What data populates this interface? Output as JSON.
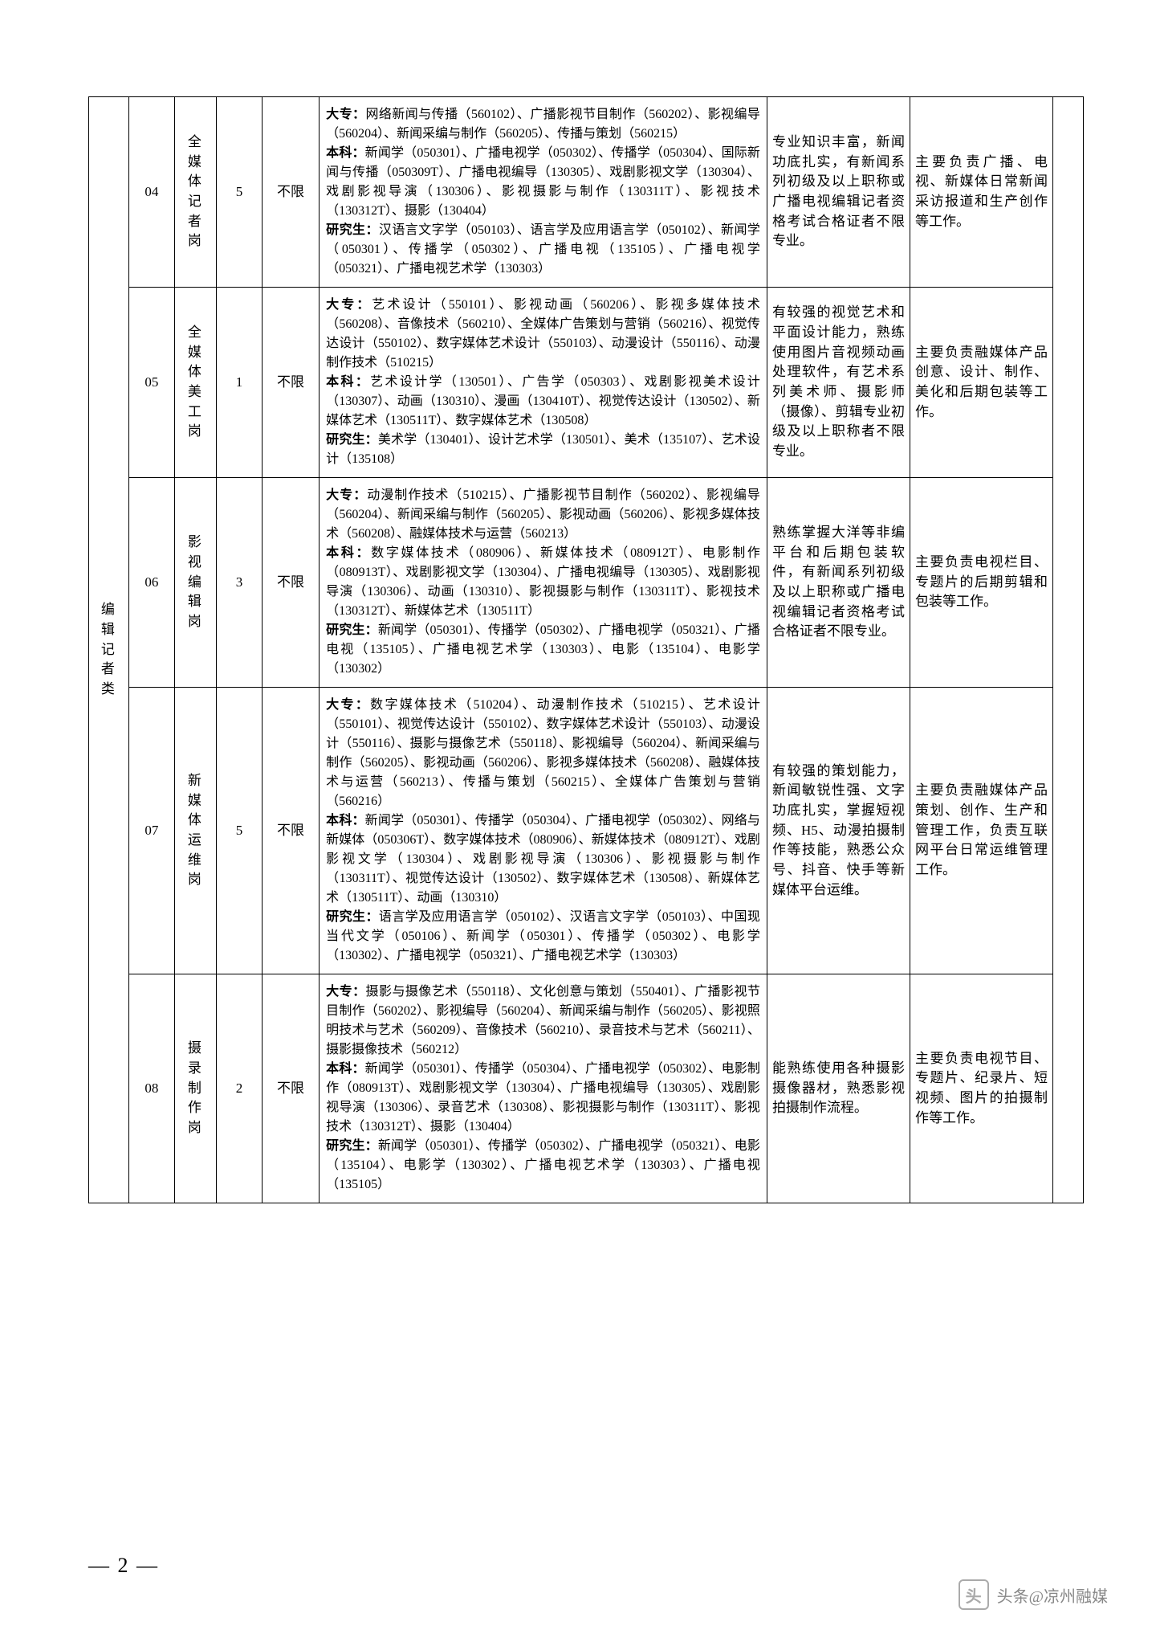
{
  "category": "编辑记者类",
  "pageNumber": "— 2 —",
  "watermark": {
    "prefix": "头条",
    "name": "@凉州融媒"
  },
  "rows": [
    {
      "num": "04",
      "post": "全媒体记者岗",
      "count": "5",
      "limit": "不限",
      "major": "<b>大专：</b>网络新闻与传播（560102）、广播影视节目制作（560202）、影视编导（560204）、新闻采编与制作（560205）、传播与策划（560215）<br><b>本科：</b>新闻学（050301）、广播电视学（050302）、传播学（050304）、国际新闻与传播（050309T）、广播电视编导（130305）、戏剧影视文学（130304）、戏剧影视导演（130306）、影视摄影与制作（130311T）、影视技术（130312T）、摄影（130404）<br><b>研究生：</b>汉语言文字学（050103）、语言学及应用语言学（050102）、新闻学（050301）、传播学（050302）、广播电视（135105）、广播电视学（050321）、广播电视艺术学（130303）",
      "req": "专业知识丰富，新闻功底扎实，有新闻系列初级及以上职称或广播电视编辑记者资格考试合格证者不限专业。",
      "duty": "主要负责广播、电视、新媒体日常新闻采访报道和生产创作等工作。"
    },
    {
      "num": "05",
      "post": "全媒体美工岗",
      "count": "1",
      "limit": "不限",
      "major": "<b>大专：</b>艺术设计（550101）、影视动画（560206）、影视多媒体技术（560208）、音像技术（560210）、全媒体广告策划与营销（560216）、视觉传达设计（550102）、数字媒体艺术设计（550103）、动漫设计（550116）、动漫制作技术（510215）<br><b>本科：</b>艺术设计学（130501）、广告学（050303）、戏剧影视美术设计（130307）、动画（130310）、漫画（130410T）、视觉传达设计（130502）、新媒体艺术（130511T）、数字媒体艺术（130508）<br><b>研究生：</b>美术学（130401）、设计艺术学（130501）、美术（135107）、艺术设计（135108）",
      "req": "有较强的视觉艺术和平面设计能力，熟练使用图片音视频动画处理软件，有艺术系列美术师、摄影师（摄像）、剪辑专业初级及以上职称者不限专业。",
      "duty": "主要负责融媒体产品创意、设计、制作、美化和后期包装等工作。"
    },
    {
      "num": "06",
      "post": "影视编辑岗",
      "count": "3",
      "limit": "不限",
      "major": "<b>大专：</b>动漫制作技术（510215）、广播影视节目制作（560202）、影视编导（560204）、新闻采编与制作（560205）、影视动画（560206）、影视多媒体技术（560208）、融媒体技术与运营（560213）<br><b>本科：</b>数字媒体技术（080906）、新媒体技术（080912T）、电影制作（080913T）、戏剧影视文学（130304）、广播电视编导（130305）、戏剧影视导演（130306）、动画（130310）、影视摄影与制作（130311T）、影视技术（130312T）、新媒体艺术（130511T）<br><b>研究生：</b>新闻学（050301）、传播学（050302）、广播电视学（050321）、广播电视（135105）、广播电视艺术学（130303）、电影（135104）、电影学（130302）",
      "req": "熟练掌握大洋等非编平台和后期包装软件，有新闻系列初级及以上职称或广播电视编辑记者资格考试合格证者不限专业。",
      "duty": "主要负责电视栏目、专题片的后期剪辑和包装等工作。"
    },
    {
      "num": "07",
      "post": "新媒体运维岗",
      "count": "5",
      "limit": "不限",
      "major": "<b>大专：</b>数字媒体技术（510204）、动漫制作技术（510215）、艺术设计（550101）、视觉传达设计（550102）、数字媒体艺术设计（550103）、动漫设计（550116）、摄影与摄像艺术（550118）、影视编导（560204）、新闻采编与制作（560205）、影视动画（560206）、影视多媒体技术（560208）、融媒体技术与运营（560213）、传播与策划（560215）、全媒体广告策划与营销（560216）<br><b>本科：</b>新闻学（050301）、传播学（050304）、广播电视学（050302）、网络与新媒体（050306T）、数字媒体技术（080906）、新媒体技术（080912T）、戏剧影视文学（130304）、戏剧影视导演（130306）、影视摄影与制作（130311T）、视觉传达设计（130502）、数字媒体艺术（130508）、新媒体艺术（130511T）、动画（130310）<br><b>研究生：</b>语言学及应用语言学（050102）、汉语言文字学（050103）、中国现当代文学（050106）、新闻学（050301）、传播学（050302）、电影学（130302）、广播电视学（050321）、广播电视艺术学（130303）",
      "req": "有较强的策划能力，新闻敏锐性强、文字功底扎实，掌握短视频、H5、动漫拍摄制作等技能，熟悉公众号、抖音、快手等新媒体平台运维。",
      "duty": "主要负责融媒体产品策划、创作、生产和管理工作，负责互联网平台日常运维管理工作。"
    },
    {
      "num": "08",
      "post": "摄录制作岗",
      "count": "2",
      "limit": "不限",
      "major": "<b>大专：</b>摄影与摄像艺术（550118）、文化创意与策划（550401）、广播影视节目制作（560202）、影视编导（560204）、新闻采编与制作（560205）、影视照明技术与艺术（560209）、音像技术（560210）、录音技术与艺术（560211）、摄影摄像技术（560212）<br><b>本科：</b>新闻学（050301）、传播学（050304）、广播电视学（050302）、电影制作（080913T）、戏剧影视文学（130304）、广播电视编导（130305）、戏剧影视导演（130306）、录音艺术（130308）、影视摄影与制作（130311T）、影视技术（130312T）、摄影（130404）<br><b>研究生：</b>新闻学（050301）、传播学（050302）、广播电视学（050321）、电影（135104）、电影学（130302）、广播电视艺术学（130303）、广播电视（135105）",
      "req": "能熟练使用各种摄影摄像器材，熟悉影视拍摄制作流程。",
      "duty": "主要负责电视节目、专题片、纪录片、短视频、图片的拍摄制作等工作。"
    }
  ]
}
